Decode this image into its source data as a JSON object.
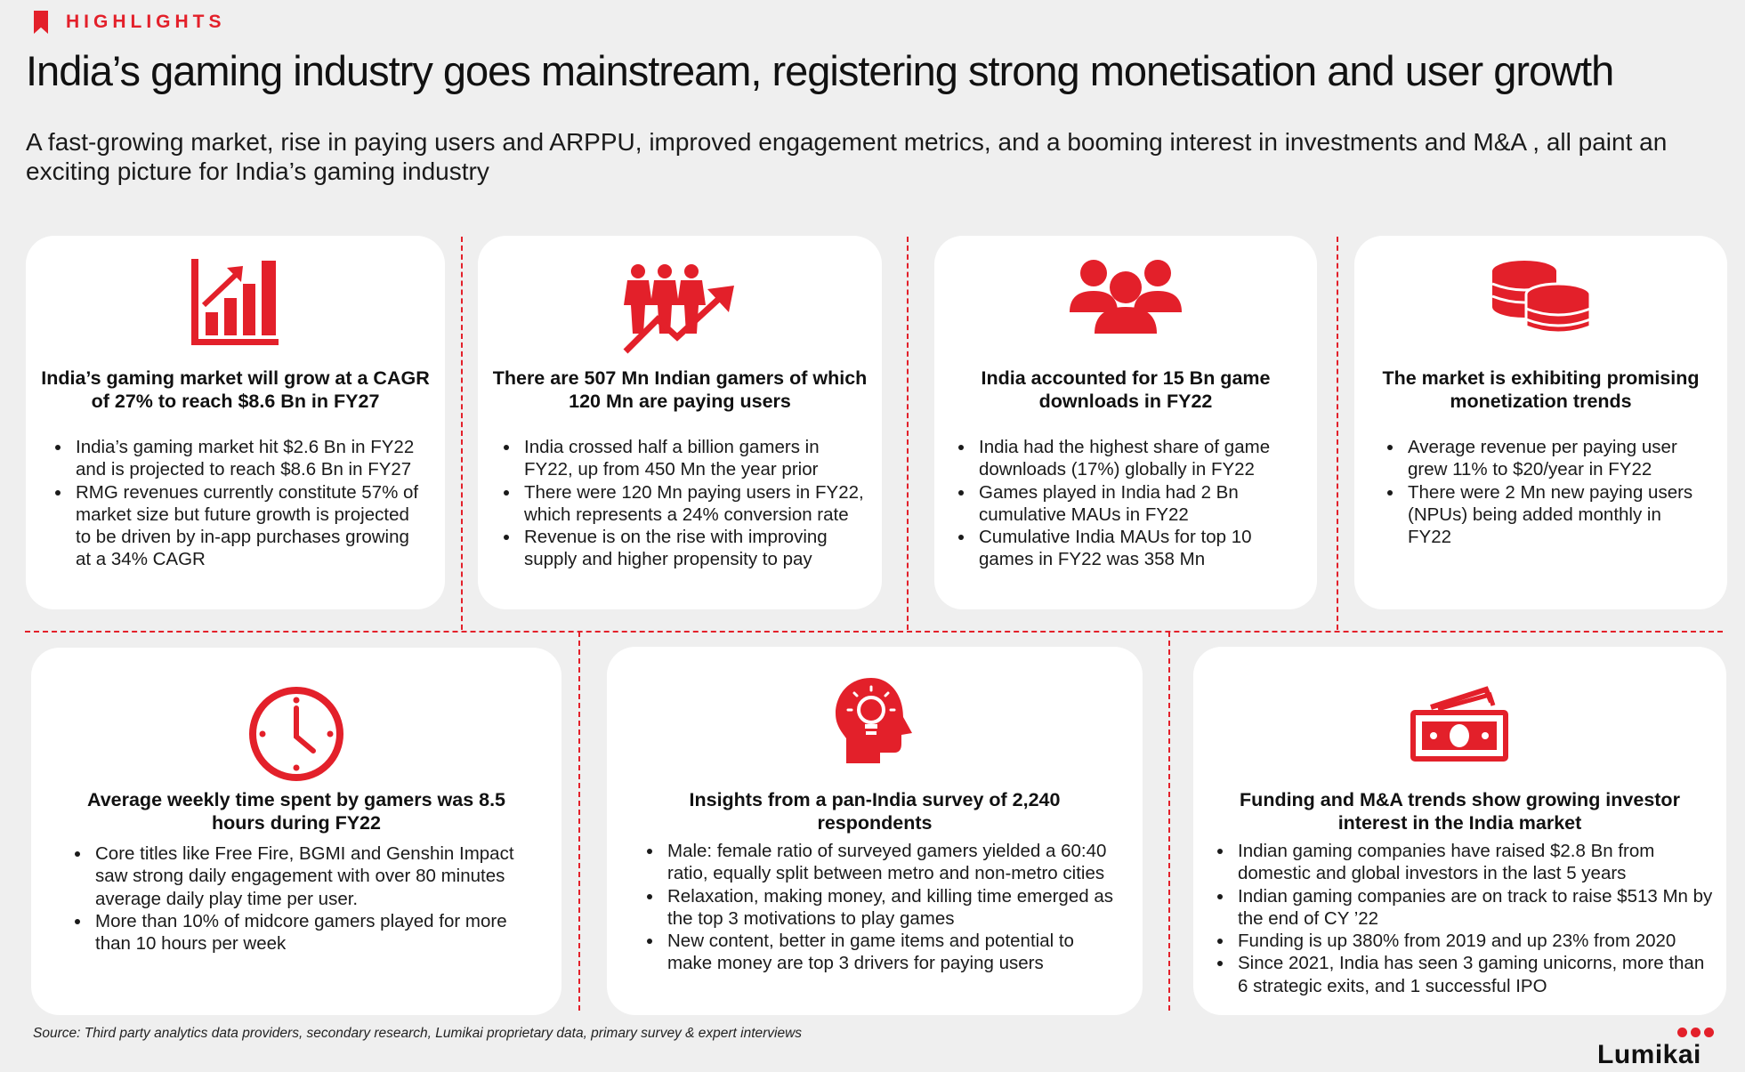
{
  "header": {
    "tag": "HIGHLIGHTS",
    "title": "India’s gaming industry goes mainstream, registering strong monetisation and user growth",
    "subtitle": "A fast-growing market, rise in paying users and ARPPU, improved engagement metrics, and a booming interest in investments and M&A , all paint an exciting picture for India’s gaming industry"
  },
  "colors": {
    "accent": "#e3202a",
    "background": "#efefef",
    "card": "#ffffff"
  },
  "cards": [
    {
      "icon": "growth-bar-chart-icon",
      "title": "India’s gaming market will grow at a CAGR of 27% to reach $8.6 Bn in FY27",
      "bullets": [
        "India’s gaming market hit $2.6 Bn in FY22 and is projected to reach $8.6 Bn in FY27",
        "RMG revenues currently constitute 57% of market size but future growth is projected to be driven by in-app purchases growing at a 34% CAGR"
      ]
    },
    {
      "icon": "people-growth-arrow-icon",
      "title": "There are 507 Mn Indian gamers of which 120 Mn are paying users",
      "bullets": [
        "India crossed half a billion gamers in FY22, up from 450 Mn the year prior",
        "There were 120 Mn paying users in FY22, which represents a 24% conversion rate",
        "Revenue is on the rise with improving supply and higher propensity to pay"
      ]
    },
    {
      "icon": "users-group-icon",
      "title": "India accounted for 15 Bn game downloads in FY22",
      "bullets": [
        "India had the highest share of game downloads (17%) globally in FY22",
        "Games played in India had 2 Bn cumulative MAUs in FY22",
        "Cumulative India MAUs for top 10 games in FY22 was 358 Mn"
      ]
    },
    {
      "icon": "coin-stack-icon",
      "title": "The market is exhibiting promising monetization trends",
      "bullets": [
        "Average revenue per paying user grew 11% to $20/year in FY22",
        "There were 2 Mn new paying users (NPUs) being added monthly in FY22"
      ]
    },
    {
      "icon": "clock-icon",
      "title": "Average weekly time spent by gamers was 8.5 hours during FY22",
      "bullets": [
        "Core titles like Free Fire, BGMI and Genshin Impact saw strong daily engagement with over 80 minutes average daily play time per user.",
        "More than 10% of midcore gamers played for more than 10 hours per week"
      ]
    },
    {
      "icon": "head-lightbulb-icon",
      "title": "Insights from a pan-India survey of 2,240 respondents",
      "bullets": [
        "Male: female ratio of surveyed gamers yielded a 60:40 ratio, equally split between metro and non-metro cities",
        "Relaxation, making money, and killing time emerged as the top 3 motivations to play games",
        "New content, better in game items and potential to make money are top 3 drivers for paying users"
      ]
    },
    {
      "icon": "money-bills-icon",
      "title": "Funding and M&A trends show growing investor interest in the India market",
      "bullets": [
        "Indian gaming companies have raised $2.8 Bn from domestic and global investors in the last 5 years",
        "Indian gaming companies are on track to raise $513 Mn by the end of CY ’22",
        "Funding is up 380% from 2019 and up 23% from 2020",
        "Since 2021, India has seen 3 gaming unicorns, more than 6 strategic exits, and 1 successful IPO"
      ]
    }
  ],
  "footer": {
    "source": "Source: Third party analytics data providers, secondary research, Lumikai proprietary data, primary survey & expert interviews",
    "logo": "Lumikai"
  }
}
